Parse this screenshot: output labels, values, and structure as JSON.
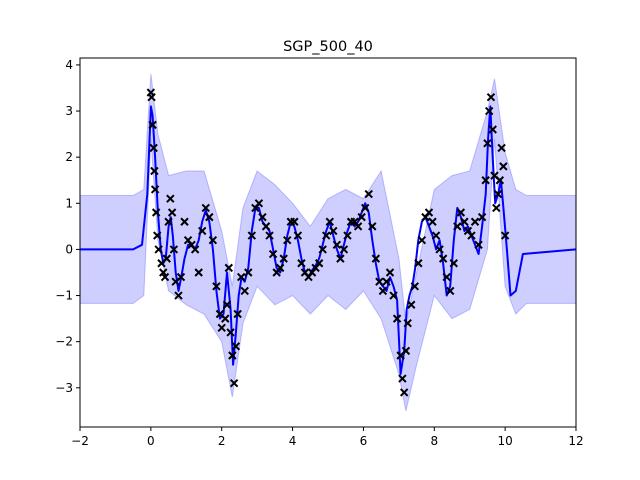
{
  "chart_data": {
    "type": "line",
    "title": "SGP_500_40",
    "xlabel": "",
    "ylabel": "",
    "xlim": [
      -2,
      12
    ],
    "ylim": [
      -3.85,
      4.15
    ],
    "xticks": [
      -2,
      0,
      2,
      4,
      6,
      8,
      10,
      12
    ],
    "yticks": [
      -3,
      -2,
      -1,
      0,
      1,
      2,
      3,
      4
    ],
    "grid": false,
    "colors": {
      "mean": "#0000ff",
      "band": "#b3b3ff",
      "points": "#000000"
    },
    "mean_curve": {
      "x": [
        -2,
        -0.5,
        -0.25,
        -0.1,
        0,
        0.05,
        0.12,
        0.2,
        0.28,
        0.35,
        0.42,
        0.5,
        0.56,
        0.62,
        0.7,
        0.78,
        0.86,
        0.95,
        1.05,
        1.15,
        1.25,
        1.35,
        1.45,
        1.55,
        1.65,
        1.75,
        1.85,
        1.95,
        2.05,
        2.15,
        2.25,
        2.32,
        2.4,
        2.48,
        2.56,
        2.65,
        2.75,
        2.85,
        2.95,
        3.05,
        3.15,
        3.25,
        3.35,
        3.45,
        3.55,
        3.65,
        3.75,
        3.85,
        3.95,
        4.05,
        4.15,
        4.25,
        4.35,
        4.45,
        4.55,
        4.65,
        4.75,
        4.85,
        4.95,
        5.05,
        5.15,
        5.25,
        5.35,
        5.45,
        5.55,
        5.65,
        5.75,
        5.85,
        5.95,
        6.05,
        6.15,
        6.25,
        6.35,
        6.45,
        6.55,
        6.65,
        6.75,
        6.85,
        6.95,
        7.05,
        7.15,
        7.22,
        7.3,
        7.38,
        7.46,
        7.55,
        7.65,
        7.75,
        7.85,
        7.95,
        8.05,
        8.15,
        8.25,
        8.35,
        8.45,
        8.55,
        8.65,
        8.75,
        8.85,
        8.95,
        9.05,
        9.15,
        9.25,
        9.35,
        9.45,
        9.52,
        9.58,
        9.65,
        9.72,
        9.8,
        9.88,
        9.95,
        10.05,
        10.15,
        10.3,
        10.5,
        12
      ],
      "y": [
        0,
        0,
        0.1,
        1.2,
        3.1,
        2.9,
        2.0,
        0.8,
        0.0,
        -0.3,
        -0.2,
        0.5,
        0.7,
        0.3,
        -0.5,
        -0.9,
        -0.6,
        -0.2,
        0.1,
        0.1,
        0.0,
        0.2,
        0.6,
        0.85,
        0.6,
        0.0,
        -0.9,
        -1.5,
        -1.4,
        -0.5,
        -1.3,
        -2.5,
        -1.8,
        -1.0,
        -0.6,
        -0.7,
        -0.4,
        0.4,
        0.9,
        0.9,
        0.6,
        0.5,
        0.4,
        0.0,
        -0.4,
        -0.5,
        -0.2,
        0.3,
        0.6,
        0.5,
        0.2,
        -0.2,
        -0.5,
        -0.6,
        -0.45,
        -0.35,
        -0.2,
        0.1,
        0.4,
        0.6,
        0.3,
        0.0,
        -0.2,
        0.1,
        0.4,
        0.6,
        0.5,
        0.6,
        0.8,
        1.0,
        0.8,
        0.2,
        -0.3,
        -0.7,
        -0.8,
        -0.9,
        -0.6,
        -0.8,
        -1.1,
        -2.7,
        -2.2,
        -1.3,
        -1.0,
        -0.8,
        -0.4,
        0.2,
        0.6,
        0.7,
        0.5,
        0.3,
        0.0,
        0.2,
        -0.3,
        -1.0,
        -0.8,
        0.2,
        0.9,
        0.7,
        0.4,
        0.5,
        0.3,
        0.1,
        -0.1,
        0.5,
        1.2,
        2.4,
        3.1,
        2.0,
        1.0,
        1.2,
        1.5,
        0.9,
        0.0,
        -1.0,
        -0.9,
        -0.1,
        0
      ]
    },
    "confidence_band": {
      "x": [
        -2,
        -0.5,
        -0.2,
        0,
        0.2,
        0.5,
        1.0,
        1.5,
        2.0,
        2.3,
        2.6,
        3.0,
        3.5,
        4.0,
        4.5,
        5.0,
        5.5,
        6.0,
        6.5,
        7.0,
        7.2,
        7.5,
        8.0,
        8.5,
        9.0,
        9.5,
        9.7,
        10.0,
        10.3,
        10.6,
        12
      ],
      "upper": [
        1.17,
        1.17,
        1.3,
        3.8,
        2.5,
        1.6,
        1.7,
        1.7,
        0.4,
        -0.8,
        0.9,
        1.7,
        1.4,
        1.0,
        0.5,
        1.1,
        1.3,
        1.1,
        1.7,
        -0.2,
        -1.6,
        -0.5,
        1.3,
        1.6,
        1.7,
        3.0,
        3.7,
        2.1,
        1.3,
        1.17,
        1.17
      ],
      "lower": [
        -1.17,
        -1.17,
        -1.0,
        2.4,
        0.2,
        -0.9,
        -1.2,
        -1.4,
        -2.0,
        -3.2,
        -1.6,
        -0.8,
        -1.2,
        -1.0,
        -1.4,
        -1.0,
        -1.3,
        -0.9,
        -1.5,
        -2.7,
        -3.5,
        -2.5,
        -1.0,
        -1.5,
        -1.3,
        0.0,
        2.4,
        -0.8,
        -1.4,
        -1.17,
        -1.17
      ]
    },
    "scatter_points": {
      "x": [
        0.0,
        0.02,
        0.05,
        0.08,
        0.1,
        0.12,
        0.15,
        0.18,
        0.22,
        0.3,
        0.35,
        0.4,
        0.45,
        0.5,
        0.55,
        0.6,
        0.65,
        0.7,
        0.78,
        0.85,
        0.95,
        1.05,
        1.15,
        1.25,
        1.35,
        1.45,
        1.55,
        1.65,
        1.75,
        1.85,
        1.95,
        2.0,
        2.1,
        2.15,
        2.2,
        2.25,
        2.3,
        2.35,
        2.4,
        2.45,
        2.55,
        2.65,
        2.75,
        2.85,
        2.95,
        3.05,
        3.15,
        3.25,
        3.35,
        3.45,
        3.55,
        3.65,
        3.75,
        3.85,
        3.95,
        4.05,
        4.15,
        4.25,
        4.35,
        4.45,
        4.55,
        4.65,
        4.75,
        4.85,
        4.95,
        5.05,
        5.15,
        5.25,
        5.35,
        5.45,
        5.55,
        5.65,
        5.75,
        5.85,
        5.95,
        6.05,
        6.15,
        6.25,
        6.35,
        6.45,
        6.55,
        6.65,
        6.75,
        6.85,
        6.95,
        7.05,
        7.1,
        7.15,
        7.2,
        7.25,
        7.35,
        7.45,
        7.55,
        7.65,
        7.75,
        7.85,
        7.95,
        8.05,
        8.15,
        8.25,
        8.35,
        8.45,
        8.55,
        8.65,
        8.75,
        8.85,
        8.95,
        9.05,
        9.15,
        9.25,
        9.35,
        9.45,
        9.5,
        9.55,
        9.6,
        9.65,
        9.7,
        9.75,
        9.8,
        9.85,
        9.9,
        9.95,
        10.0
      ],
      "y": [
        3.4,
        3.3,
        2.7,
        2.2,
        1.7,
        1.3,
        0.8,
        0.3,
        0.0,
        -0.3,
        -0.5,
        -0.6,
        -0.2,
        0.6,
        1.1,
        0.8,
        0.0,
        -0.7,
        -1.0,
        -0.6,
        0.6,
        0.2,
        0.1,
        0.0,
        -0.5,
        0.4,
        0.9,
        0.7,
        0.2,
        -0.8,
        -1.4,
        -1.7,
        -1.5,
        -1.2,
        -0.4,
        -1.8,
        -2.3,
        -2.9,
        -2.1,
        -1.4,
        -0.6,
        -0.9,
        -0.5,
        0.3,
        0.9,
        1.0,
        0.7,
        0.5,
        0.3,
        -0.1,
        -0.5,
        -0.4,
        -0.2,
        0.2,
        0.6,
        0.6,
        0.3,
        -0.3,
        -0.5,
        -0.6,
        -0.5,
        -0.4,
        -0.3,
        0.0,
        0.3,
        0.6,
        0.4,
        0.1,
        -0.2,
        0.0,
        0.3,
        0.6,
        0.6,
        0.5,
        0.7,
        0.9,
        1.2,
        0.5,
        -0.2,
        -0.7,
        -0.9,
        -0.7,
        -0.5,
        -1.0,
        -1.5,
        -2.3,
        -2.8,
        -3.1,
        -2.2,
        -1.6,
        -1.2,
        -0.8,
        -0.3,
        0.2,
        0.7,
        0.8,
        0.6,
        0.3,
        0.0,
        -0.2,
        -0.6,
        -0.9,
        -0.3,
        0.5,
        0.8,
        0.6,
        0.4,
        0.3,
        0.6,
        0.1,
        0.7,
        1.5,
        2.3,
        3.0,
        3.3,
        2.6,
        1.6,
        0.9,
        1.2,
        1.5,
        2.2,
        1.8,
        0.3
      ]
    }
  }
}
